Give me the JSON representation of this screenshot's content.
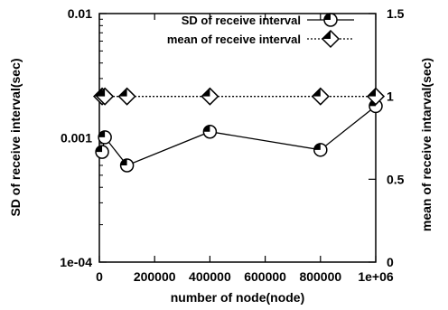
{
  "chart_data": {
    "type": "line",
    "xlabel": "number of node(node)",
    "ylabel_left": "SD of receive interval(sec)",
    "ylabel_right": "mean of receive intarval(sec)",
    "xlim": [
      0,
      1000000
    ],
    "ylim_left": [
      0.0001,
      0.01
    ],
    "ylim_right": [
      0,
      1.5
    ],
    "left_scale": "log",
    "right_scale": "linear",
    "grid": false,
    "legend_position": "top-right",
    "x_ticks": [
      {
        "value": 0,
        "label": "0"
      },
      {
        "value": 200000,
        "label": "200000"
      },
      {
        "value": 400000,
        "label": "400000"
      },
      {
        "value": 600000,
        "label": "600000"
      },
      {
        "value": 800000,
        "label": "800000"
      },
      {
        "value": 1000000,
        "label": "1e+06"
      }
    ],
    "left_ticks": [
      {
        "value": 0.0001,
        "label": "1e-04"
      },
      {
        "value": 0.001,
        "label": "0.001"
      },
      {
        "value": 0.01,
        "label": "0.01"
      }
    ],
    "right_ticks": [
      {
        "value": 0,
        "label": "0"
      },
      {
        "value": 0.5,
        "label": "0.5"
      },
      {
        "value": 1,
        "label": "1"
      },
      {
        "value": 1.5,
        "label": "1.5"
      }
    ],
    "series": [
      {
        "name": "SD of receive interval",
        "axis": "left",
        "line_style": "solid",
        "marker": "half-filled-circle",
        "color": "#000000",
        "x": [
          10000,
          20000,
          100000,
          400000,
          800000,
          1000000
        ],
        "y": [
          0.00077,
          0.00101,
          0.0006,
          0.00112,
          0.0008,
          0.0018
        ]
      },
      {
        "name": "mean of receive interval",
        "axis": "right",
        "line_style": "dotted",
        "marker": "half-filled-diamond",
        "color": "#000000",
        "x": [
          10000,
          20000,
          100000,
          400000,
          800000,
          1000000
        ],
        "y": [
          1.0,
          1.0,
          1.0,
          1.0,
          1.0,
          1.0
        ]
      }
    ]
  }
}
